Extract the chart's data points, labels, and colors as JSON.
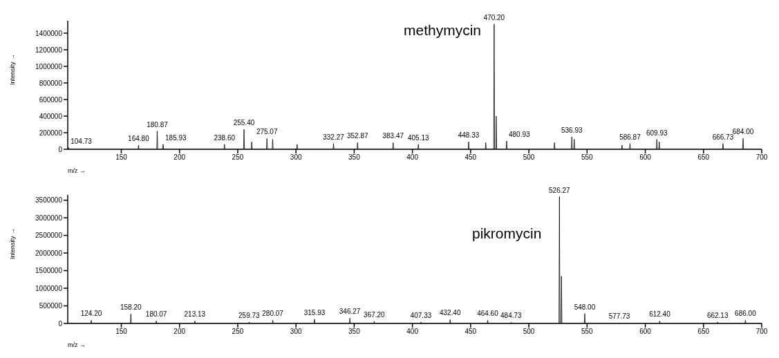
{
  "chart_data": [
    {
      "type": "line",
      "xlabel": "m/z →",
      "ylabel": "Intensity →",
      "color": "#000000",
      "marker": "none",
      "xlim": [
        104,
        700
      ],
      "xticks": [
        150,
        200,
        250,
        300,
        350,
        400,
        450,
        500,
        550,
        600,
        650,
        700
      ],
      "ylim": [
        0,
        1550000
      ],
      "yticks": [
        0,
        200000,
        400000,
        600000,
        800000,
        1000000,
        1200000,
        1400000
      ],
      "x": [
        104,
        104.33,
        104.73,
        105.13,
        164.4,
        164.8,
        165.2,
        180.47,
        180.87,
        181.27,
        185.53,
        185.93,
        186.33,
        238.2,
        238.6,
        239,
        255,
        255.4,
        255.8,
        261.6,
        262,
        262.4,
        274.67,
        275.07,
        275.47,
        279.6,
        280,
        280.4,
        300.6,
        301,
        301.4,
        331.87,
        332.27,
        332.67,
        352.47,
        352.87,
        353.27,
        383.07,
        383.47,
        383.87,
        404.73,
        405.13,
        405.53,
        447.93,
        448.33,
        448.73,
        462.6,
        463,
        463.4,
        469.8,
        470.2,
        470.6,
        471.6,
        472,
        472.4,
        480.53,
        480.93,
        481.33,
        521.6,
        522,
        522.4,
        536.53,
        536.93,
        537.33,
        538.6,
        539,
        539.4,
        579.6,
        580,
        580.4,
        586.47,
        586.87,
        587.27,
        609.53,
        609.93,
        610.33,
        611.6,
        612,
        612.4,
        666.33,
        666.73,
        667.13,
        683.6,
        684,
        684.4,
        700
      ],
      "values": [
        0,
        0,
        20000,
        0,
        0,
        50000,
        0,
        0,
        220000,
        0,
        0,
        60000,
        0,
        0,
        60000,
        0,
        0,
        240000,
        0,
        0,
        90000,
        0,
        0,
        130000,
        0,
        0,
        120000,
        0,
        0,
        60000,
        0,
        0,
        70000,
        0,
        0,
        80000,
        0,
        0,
        80000,
        0,
        0,
        60000,
        0,
        0,
        90000,
        0,
        0,
        80000,
        0,
        0,
        1510000,
        0,
        0,
        400000,
        0,
        0,
        100000,
        0,
        0,
        80000,
        0,
        0,
        150000,
        0,
        0,
        120000,
        0,
        0,
        50000,
        0,
        0,
        70000,
        0,
        0,
        120000,
        0,
        0,
        90000,
        0,
        0,
        70000,
        0,
        0,
        130000,
        0,
        0
      ],
      "annotations": [
        "methymycin",
        {
          "text": "104.73",
          "x": 104.73,
          "y": 20000
        },
        {
          "text": "164.80",
          "x": 164.8,
          "y": 50000
        },
        {
          "text": "180.87",
          "x": 180.87,
          "y": 220000
        },
        {
          "text": "185.93",
          "x": 185.93,
          "y": 60000
        },
        {
          "text": "238.60",
          "x": 238.6,
          "y": 60000
        },
        {
          "text": "255.40",
          "x": 255.4,
          "y": 240000
        },
        {
          "text": "275.07",
          "x": 275.07,
          "y": 130000
        },
        {
          "text": "332.27",
          "x": 332.27,
          "y": 70000
        },
        {
          "text": "352.87",
          "x": 352.87,
          "y": 80000
        },
        {
          "text": "383.47",
          "x": 383.47,
          "y": 80000
        },
        {
          "text": "405.13",
          "x": 405.13,
          "y": 60000
        },
        {
          "text": "448.33",
          "x": 448.33,
          "y": 90000
        },
        {
          "text": "470.20",
          "x": 470.2,
          "y": 1510000
        },
        {
          "text": "480.93",
          "x": 480.93,
          "y": 100000
        },
        {
          "text": "536.93",
          "x": 536.93,
          "y": 150000
        },
        {
          "text": "586.87",
          "x": 586.87,
          "y": 70000
        },
        {
          "text": "609.93",
          "x": 609.93,
          "y": 120000
        },
        {
          "text": "666.73",
          "x": 666.73,
          "y": 70000
        },
        {
          "text": "684.00",
          "x": 684,
          "y": 130000
        }
      ]
    },
    {
      "type": "line",
      "xlabel": "m/z →",
      "ylabel": "Intensity →",
      "color": "#000000",
      "marker": "none",
      "xlim": [
        104,
        700
      ],
      "xticks": [
        150,
        200,
        250,
        300,
        350,
        400,
        450,
        500,
        550,
        600,
        650,
        700
      ],
      "ylim": [
        0,
        3650000
      ],
      "yticks": [
        0,
        500000,
        1000000,
        1500000,
        2000000,
        2500000,
        3000000,
        3500000
      ],
      "x": [
        104,
        123.8,
        124.2,
        124.6,
        157.8,
        158.2,
        158.6,
        179.67,
        180.07,
        180.47,
        212.73,
        213.13,
        213.53,
        259.33,
        259.73,
        260.13,
        279.67,
        280.07,
        280.47,
        315.53,
        315.93,
        316.33,
        345.87,
        346.27,
        346.67,
        366.8,
        367.2,
        367.6,
        406.93,
        407.33,
        407.73,
        432,
        432.4,
        432.8,
        464.2,
        464.6,
        465,
        484.33,
        484.73,
        485.13,
        525.87,
        526.27,
        526.67,
        527.6,
        528,
        528.4,
        547.6,
        548,
        548.4,
        577.33,
        577.73,
        578.13,
        612,
        612.4,
        612.8,
        661.73,
        662.13,
        662.53,
        685.6,
        686,
        686.4,
        700
      ],
      "values": [
        0,
        0,
        90000,
        0,
        0,
        270000,
        0,
        0,
        70000,
        0,
        0,
        70000,
        0,
        0,
        40000,
        0,
        0,
        90000,
        0,
        0,
        120000,
        0,
        0,
        150000,
        0,
        0,
        60000,
        0,
        0,
        40000,
        0,
        0,
        110000,
        0,
        0,
        90000,
        0,
        0,
        30000,
        0,
        0,
        3600000,
        0,
        0,
        1340000,
        0,
        0,
        280000,
        0,
        0,
        20000,
        0,
        0,
        70000,
        0,
        0,
        40000,
        0,
        0,
        90000,
        0,
        0
      ],
      "annotations": [
        "pikromycin",
        {
          "text": "124.20",
          "x": 124.2,
          "y": 90000
        },
        {
          "text": "158.20",
          "x": 158.2,
          "y": 270000
        },
        {
          "text": "180.07",
          "x": 180.07,
          "y": 70000
        },
        {
          "text": "213.13",
          "x": 213.13,
          "y": 70000
        },
        {
          "text": "259.73",
          "x": 259.73,
          "y": 40000
        },
        {
          "text": "280.07",
          "x": 280.07,
          "y": 90000
        },
        {
          "text": "315.93",
          "x": 315.93,
          "y": 120000
        },
        {
          "text": "346.27",
          "x": 346.27,
          "y": 150000
        },
        {
          "text": "367.20",
          "x": 367.2,
          "y": 60000
        },
        {
          "text": "407.33",
          "x": 407.33,
          "y": 40000
        },
        {
          "text": "432.40",
          "x": 432.4,
          "y": 110000
        },
        {
          "text": "464.60",
          "x": 464.6,
          "y": 90000
        },
        {
          "text": "484.73",
          "x": 484.73,
          "y": 30000
        },
        {
          "text": "526.27",
          "x": 526.27,
          "y": 3600000
        },
        {
          "text": "548.00",
          "x": 548,
          "y": 280000
        },
        {
          "text": "577.73",
          "x": 577.73,
          "y": 20000
        },
        {
          "text": "612.40",
          "x": 612.4,
          "y": 70000
        },
        {
          "text": "662.13",
          "x": 662.13,
          "y": 40000
        },
        {
          "text": "686.00",
          "x": 686,
          "y": 90000
        }
      ]
    }
  ]
}
